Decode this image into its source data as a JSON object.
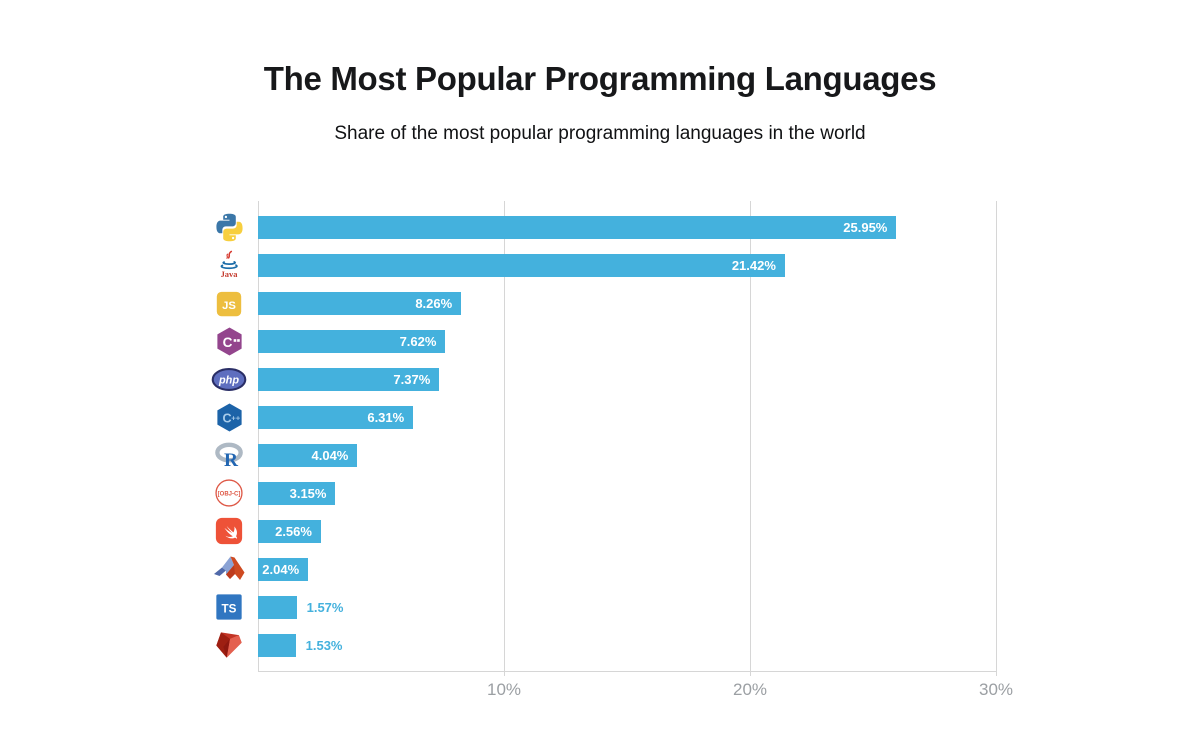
{
  "title": "The Most Popular Programming Languages",
  "subtitle": "Share of the most popular programming languages in the world",
  "chart_data": {
    "type": "bar",
    "orientation": "horizontal",
    "title": "The Most Popular Programming Languages",
    "subtitle": "Share of the most popular programming languages in the world",
    "categories": [
      "Python",
      "Java",
      "JavaScript",
      "C#",
      "PHP",
      "C++",
      "R",
      "Objective-C",
      "Swift",
      "MATLAB",
      "TypeScript",
      "Ruby"
    ],
    "values": [
      25.95,
      21.42,
      8.26,
      7.62,
      7.37,
      6.31,
      4.04,
      3.15,
      2.56,
      2.04,
      1.57,
      1.53
    ],
    "value_labels": [
      "25.95%",
      "21.42%",
      "8.26%",
      "7.62%",
      "7.37%",
      "6.31%",
      "4.04%",
      "3.15%",
      "2.56%",
      "2.04%",
      "1.57%",
      "1.53%"
    ],
    "label_positions": [
      "inside",
      "inside",
      "inside",
      "inside",
      "inside",
      "inside",
      "inside",
      "inside",
      "inside",
      "inside",
      "outside",
      "outside"
    ],
    "icons": [
      "python-icon",
      "java-icon",
      "javascript-icon",
      "csharp-icon",
      "php-icon",
      "cpp-icon",
      "r-icon",
      "objective-c-icon",
      "swift-icon",
      "matlab-icon",
      "typescript-icon",
      "ruby-icon"
    ],
    "xlabel": "",
    "ylabel": "",
    "xlim": [
      0,
      30
    ],
    "x_ticks": [
      10,
      20,
      30
    ],
    "x_tick_labels": [
      "10%",
      "20%",
      "30%"
    ],
    "grid": true,
    "legend": false,
    "colors": {
      "bar": "#44B1DD",
      "label_inside": "#FFFFFF",
      "label_outside": "#44B1DD",
      "gridline": "#D6D6D6",
      "tick_label": "#9B9FA3",
      "title": "#17181A",
      "subtitle": "#111214"
    }
  }
}
